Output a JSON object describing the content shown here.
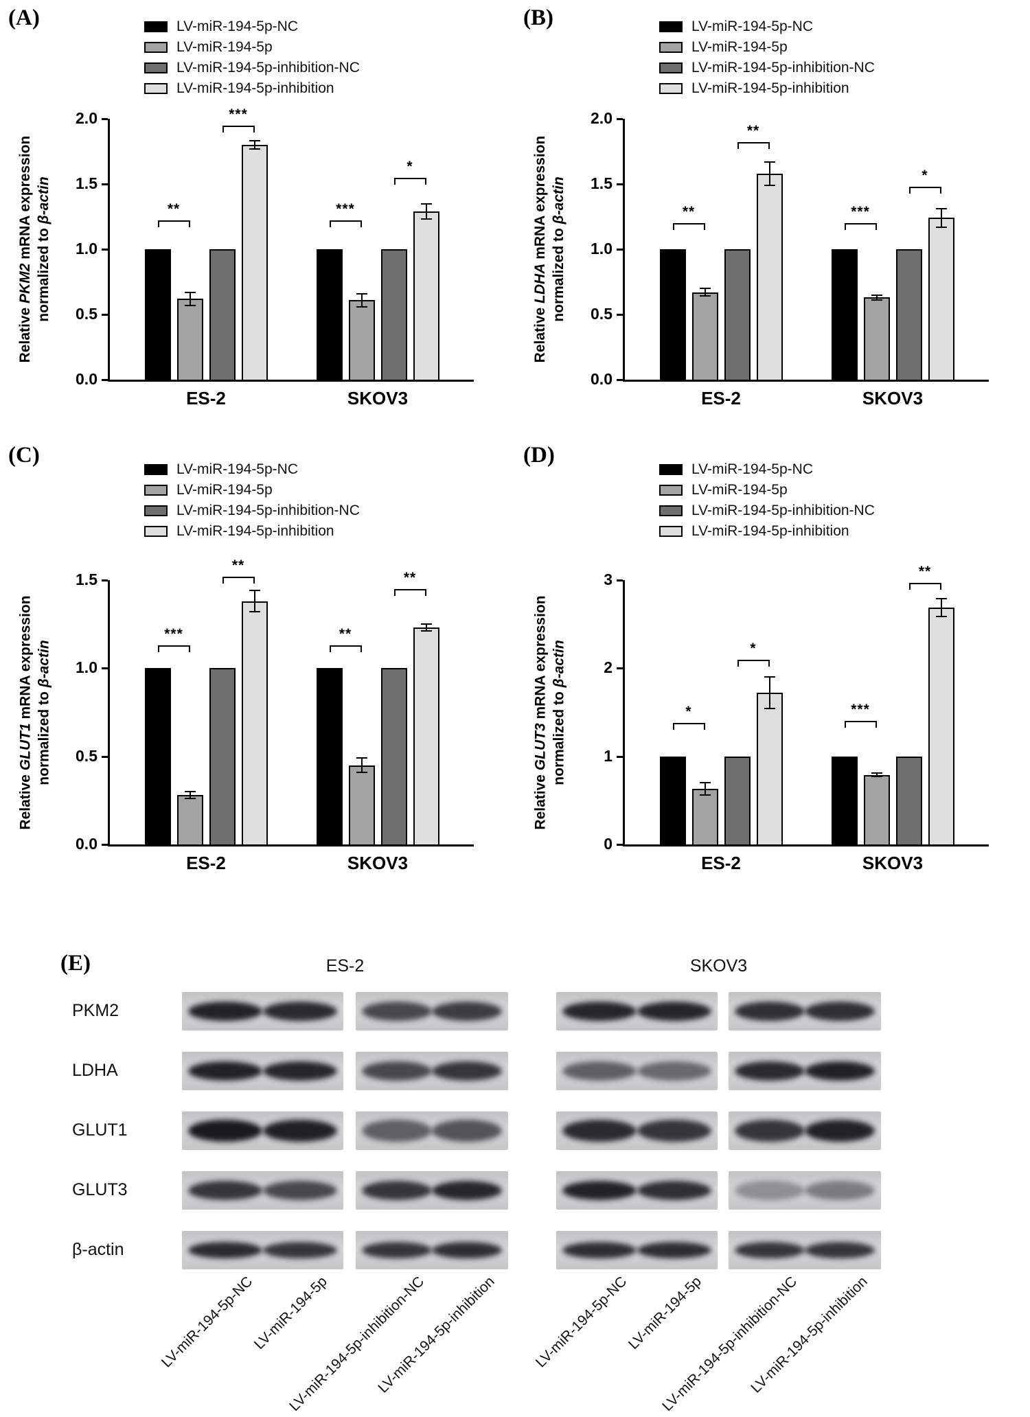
{
  "legend": {
    "labels": [
      "LV-miR-194-5p-NC",
      "LV-miR-194-5p",
      "LV-miR-194-5p-inhibition-NC",
      "LV-miR-194-5p-inhibition"
    ],
    "colors": [
      "#000000",
      "#a3a3a3",
      "#6f6f6f",
      "#dedede"
    ]
  },
  "chart_data": [
    {
      "type": "bar",
      "panel": "(A)",
      "ylabel": {
        "prefix": "Relative ",
        "gene": "PKM2",
        "suffix": " mRNA expression",
        "line2_prefix": "normalized to ",
        "line2_italic": "β-actin"
      },
      "categories": [
        "ES-2",
        "SKOV3"
      ],
      "series": [
        {
          "name": "LV-miR-194-5p-NC",
          "values": [
            1.0,
            1.0
          ],
          "errors": [
            0,
            0
          ]
        },
        {
          "name": "LV-miR-194-5p",
          "values": [
            0.62,
            0.61
          ],
          "errors": [
            0.05,
            0.05
          ]
        },
        {
          "name": "LV-miR-194-5p-inhibition-NC",
          "values": [
            1.0,
            1.0
          ],
          "errors": [
            0,
            0
          ]
        },
        {
          "name": "LV-miR-194-5p-inhibition",
          "values": [
            1.8,
            1.29
          ],
          "errors": [
            0.03,
            0.06
          ]
        }
      ],
      "ylim": [
        0,
        2.0
      ],
      "yticks": [
        "0.0",
        "0.5",
        "1.0",
        "1.5",
        "2.0"
      ],
      "significance": [
        {
          "category": 0,
          "bars": [
            0,
            1
          ],
          "stars": "**",
          "y": 1.22
        },
        {
          "category": 0,
          "bars": [
            2,
            3
          ],
          "stars": "***",
          "y": 1.95
        },
        {
          "category": 1,
          "bars": [
            0,
            1
          ],
          "stars": "***",
          "y": 1.22
        },
        {
          "category": 1,
          "bars": [
            2,
            3
          ],
          "stars": "*",
          "y": 1.55
        }
      ]
    },
    {
      "type": "bar",
      "panel": "(B)",
      "ylabel": {
        "prefix": "Relative ",
        "gene": "LDHA",
        "suffix": " mRNA expression",
        "line2_prefix": "normalized to ",
        "line2_italic": "β-actin"
      },
      "categories": [
        "ES-2",
        "SKOV3"
      ],
      "series": [
        {
          "name": "LV-miR-194-5p-NC",
          "values": [
            1.0,
            1.0
          ],
          "errors": [
            0,
            0
          ]
        },
        {
          "name": "LV-miR-194-5p",
          "values": [
            0.67,
            0.63
          ],
          "errors": [
            0.03,
            0.02
          ]
        },
        {
          "name": "LV-miR-194-5p-inhibition-NC",
          "values": [
            1.0,
            1.0
          ],
          "errors": [
            0,
            0
          ]
        },
        {
          "name": "LV-miR-194-5p-inhibition",
          "values": [
            1.58,
            1.24
          ],
          "errors": [
            0.09,
            0.07
          ]
        }
      ],
      "ylim": [
        0,
        2.0
      ],
      "yticks": [
        "0.0",
        "0.5",
        "1.0",
        "1.5",
        "2.0"
      ],
      "significance": [
        {
          "category": 0,
          "bars": [
            0,
            1
          ],
          "stars": "**",
          "y": 1.2
        },
        {
          "category": 0,
          "bars": [
            2,
            3
          ],
          "stars": "**",
          "y": 1.82
        },
        {
          "category": 1,
          "bars": [
            0,
            1
          ],
          "stars": "***",
          "y": 1.2
        },
        {
          "category": 1,
          "bars": [
            2,
            3
          ],
          "stars": "*",
          "y": 1.48
        }
      ]
    },
    {
      "type": "bar",
      "panel": "(C)",
      "ylabel": {
        "prefix": "Relative ",
        "gene": "GLUT1",
        "suffix": " mRNA expression",
        "line2_prefix": "normalized to ",
        "line2_italic": "β-actin"
      },
      "categories": [
        "ES-2",
        "SKOV3"
      ],
      "series": [
        {
          "name": "LV-miR-194-5p-NC",
          "values": [
            1.0,
            1.0
          ],
          "errors": [
            0,
            0
          ]
        },
        {
          "name": "LV-miR-194-5p",
          "values": [
            0.28,
            0.45
          ],
          "errors": [
            0.02,
            0.04
          ]
        },
        {
          "name": "LV-miR-194-5p-inhibition-NC",
          "values": [
            1.0,
            1.0
          ],
          "errors": [
            0,
            0
          ]
        },
        {
          "name": "LV-miR-194-5p-inhibition",
          "values": [
            1.38,
            1.23
          ],
          "errors": [
            0.06,
            0.02
          ]
        }
      ],
      "ylim": [
        0,
        1.5
      ],
      "yticks": [
        "0.0",
        "0.5",
        "1.0",
        "1.5"
      ],
      "significance": [
        {
          "category": 0,
          "bars": [
            0,
            1
          ],
          "stars": "***",
          "y": 1.13
        },
        {
          "category": 0,
          "bars": [
            2,
            3
          ],
          "stars": "**",
          "y": 1.52
        },
        {
          "category": 1,
          "bars": [
            0,
            1
          ],
          "stars": "**",
          "y": 1.13
        },
        {
          "category": 1,
          "bars": [
            2,
            3
          ],
          "stars": "**",
          "y": 1.45
        }
      ]
    },
    {
      "type": "bar",
      "panel": "(D)",
      "ylabel": {
        "prefix": "Relative ",
        "gene": "GLUT3",
        "suffix": " mRNA expression",
        "line2_prefix": "normalized to ",
        "line2_italic": "β-actin"
      },
      "categories": [
        "ES-2",
        "SKOV3"
      ],
      "series": [
        {
          "name": "LV-miR-194-5p-NC",
          "values": [
            1.0,
            1.0
          ],
          "errors": [
            0,
            0
          ]
        },
        {
          "name": "LV-miR-194-5p",
          "values": [
            0.63,
            0.79
          ],
          "errors": [
            0.07,
            0.02
          ]
        },
        {
          "name": "LV-miR-194-5p-inhibition-NC",
          "values": [
            1.0,
            1.0
          ],
          "errors": [
            0,
            0
          ]
        },
        {
          "name": "LV-miR-194-5p-inhibition",
          "values": [
            1.72,
            2.69
          ],
          "errors": [
            0.18,
            0.1
          ]
        }
      ],
      "ylim": [
        0,
        3
      ],
      "yticks": [
        "0",
        "1",
        "2",
        "3"
      ],
      "significance": [
        {
          "category": 0,
          "bars": [
            0,
            1
          ],
          "stars": "*",
          "y": 1.38
        },
        {
          "category": 0,
          "bars": [
            2,
            3
          ],
          "stars": "*",
          "y": 2.1
        },
        {
          "category": 1,
          "bars": [
            0,
            1
          ],
          "stars": "***",
          "y": 1.4
        },
        {
          "category": 1,
          "bars": [
            2,
            3
          ],
          "stars": "**",
          "y": 2.97
        }
      ]
    }
  ],
  "blot": {
    "panel": "(E)",
    "cell_line_headers": [
      "ES-2",
      "SKOV3"
    ],
    "row_labels": [
      "PKM2",
      "LDHA",
      "GLUT1",
      "GLUT3",
      "β-actin"
    ],
    "lane_labels": [
      "LV-miR-194-5p-NC",
      "LV-miR-194-5p",
      "LV-miR-194-5p-inhibition-NC",
      "LV-miR-194-5p-inhibition"
    ],
    "band_intensity": {
      "PKM2": [
        [
          0.92,
          0.88
        ],
        [
          0.72,
          0.78
        ],
        [
          0.9,
          0.9
        ],
        [
          0.85,
          0.85
        ]
      ],
      "LDHA": [
        [
          0.92,
          0.9
        ],
        [
          0.72,
          0.82
        ],
        [
          0.6,
          0.55
        ],
        [
          0.88,
          0.92
        ]
      ],
      "GLUT1": [
        [
          0.97,
          0.93
        ],
        [
          0.6,
          0.66
        ],
        [
          0.88,
          0.82
        ],
        [
          0.82,
          0.92
        ]
      ],
      "GLUT3": [
        [
          0.82,
          0.72
        ],
        [
          0.82,
          0.9
        ],
        [
          0.92,
          0.85
        ],
        [
          0.35,
          0.45
        ]
      ],
      "β-actin": [
        [
          0.88,
          0.82
        ],
        [
          0.82,
          0.86
        ],
        [
          0.86,
          0.86
        ],
        [
          0.82,
          0.82
        ]
      ]
    }
  }
}
